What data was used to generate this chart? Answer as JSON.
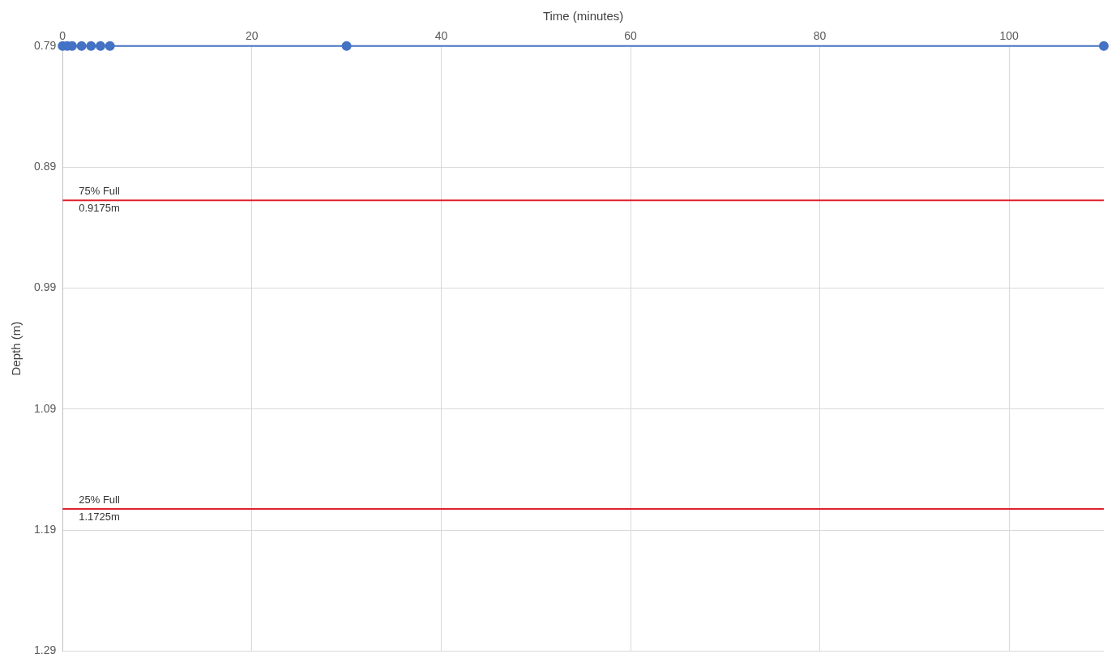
{
  "chart_data": {
    "type": "line",
    "xlabel": "Time (minutes)",
    "ylabel": "Depth (m)",
    "x": [
      0,
      0.5,
      1,
      2,
      3,
      4,
      5,
      30,
      110
    ],
    "series": [
      {
        "color": "#4472c4",
        "values": [
          0.79,
          0.79,
          0.79,
          0.79,
          0.79,
          0.79,
          0.79,
          0.79,
          0.79
        ]
      }
    ],
    "xlim": [
      0,
      110
    ],
    "xticks": [
      0,
      20,
      40,
      60,
      80,
      100
    ],
    "ylim": [
      1.29,
      0.79
    ],
    "yticks": [
      0.79,
      0.89,
      0.99,
      1.09,
      1.19,
      1.29
    ],
    "ref_lines": [
      {
        "axis": "y",
        "value": 0.9175,
        "label": "75% Full\n0.9175m",
        "color": "#e0202f"
      },
      {
        "axis": "y",
        "value": 1.1725,
        "label": "25% Full\n1.1725m",
        "color": "#e0202f"
      }
    ],
    "grid": true,
    "marker": "circle",
    "line_style": "solid",
    "legend": false
  }
}
